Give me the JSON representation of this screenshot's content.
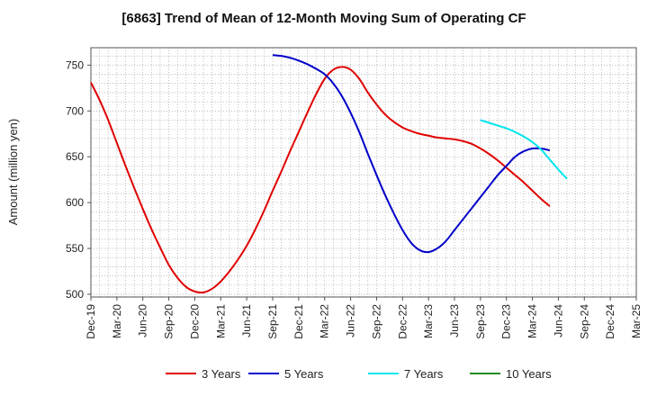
{
  "chart_data": {
    "type": "line",
    "title": "[6863]  Trend of Mean of 12-Month Moving Sum of Operating CF",
    "xlabel": "",
    "ylabel": "Amount (million yen)",
    "ylim": [
      497,
      769
    ],
    "yticks": [
      500,
      550,
      600,
      650,
      700,
      750
    ],
    "x_start": "Dec-19",
    "x_end": "Mar-25",
    "x_tick_labels": [
      "Dec-19",
      "Mar-20",
      "Jun-20",
      "Sep-20",
      "Dec-20",
      "Mar-21",
      "Jun-21",
      "Sep-21",
      "Dec-21",
      "Mar-22",
      "Jun-22",
      "Sep-22",
      "Dec-22",
      "Mar-23",
      "Jun-23",
      "Sep-23",
      "Dec-23",
      "Mar-24",
      "Jun-24",
      "Sep-24",
      "Dec-24",
      "Mar-25"
    ],
    "grid": true,
    "legend_position": "bottom",
    "series": [
      {
        "name": "3 Years",
        "color": "#e00000",
        "start": "Dec-19",
        "values": [
          731,
          712,
          690,
          665,
          640,
          616,
          593,
          571,
          551,
          532,
          518,
          508,
          503,
          502,
          506,
          514,
          525,
          538,
          553,
          571,
          591,
          613,
          634,
          656,
          677,
          698,
          718,
          735,
          745,
          748,
          745,
          735,
          720,
          707,
          696,
          688,
          682,
          678,
          675,
          673,
          671,
          670,
          669,
          667,
          664,
          659,
          653,
          646,
          638,
          630,
          622,
          613,
          604,
          596
        ]
      },
      {
        "name": "5 Years",
        "color": "#0000c8",
        "start": "Sep-21",
        "values": [
          761,
          760,
          758,
          755,
          751,
          746,
          740,
          730,
          716,
          698,
          677,
          653,
          630,
          608,
          588,
          570,
          556,
          548,
          546,
          550,
          558,
          570,
          582,
          594,
          606,
          618,
          630,
          640,
          650,
          656,
          659,
          659,
          657
        ]
      },
      {
        "name": "7 Years",
        "color": "#00e5ee",
        "start": "Sep-23",
        "values": [
          690,
          687,
          684,
          681,
          677,
          672,
          666,
          658,
          647,
          636,
          626
        ]
      },
      {
        "name": "10 Years",
        "color": "#228b22",
        "start": "Sep-24",
        "values": []
      }
    ]
  }
}
